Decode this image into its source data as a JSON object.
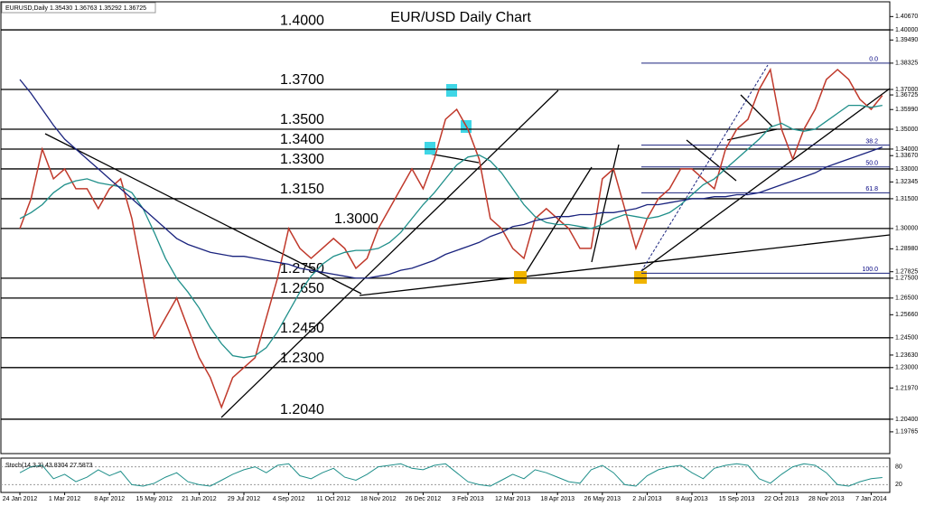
{
  "header": "EURUSD,Daily  1.35430 1.36763 1.35292 1.36725",
  "chart_data": {
    "type": "line",
    "title": "EUR/USD Daily Chart",
    "categories": [
      "24 Jan 2012",
      null,
      null,
      null,
      "1 Mar 2012",
      null,
      null,
      null,
      "8 Apr 2012",
      null,
      null,
      null,
      "15 May 2012",
      null,
      null,
      null,
      "21 Jun 2012",
      null,
      null,
      null,
      "29 Jul 2012",
      null,
      null,
      null,
      "4 Sep 2012",
      null,
      null,
      null,
      "11 Oct 2012",
      null,
      null,
      null,
      "18 Nov 2012",
      null,
      null,
      null,
      "26 Dec 2012",
      null,
      null,
      null,
      "3 Feb 2013",
      null,
      null,
      null,
      "12 Mar 2013",
      null,
      null,
      null,
      "18 Apr 2013",
      null,
      null,
      null,
      "26 May 2013",
      null,
      null,
      null,
      "2 Jul 2013",
      null,
      null,
      null,
      "8 Aug 2013",
      null,
      null,
      null,
      "15 Sep 2013",
      null,
      null,
      null,
      "22 Oct 2013",
      null,
      null,
      null,
      "28 Nov 2013",
      null,
      null,
      null,
      "7 Jan 2014",
      null
    ],
    "series": [
      {
        "color": "#c0392b",
        "values": [
          1.3,
          1.315,
          1.34,
          1.325,
          1.33,
          1.32,
          1.32,
          1.31,
          1.32,
          1.325,
          1.305,
          1.275,
          1.245,
          1.255,
          1.265,
          1.25,
          1.235,
          1.225,
          1.21,
          1.225,
          1.23,
          1.235,
          1.255,
          1.275,
          1.3,
          1.29,
          1.285,
          1.29,
          1.295,
          1.29,
          1.28,
          1.285,
          1.3,
          1.31,
          1.32,
          1.33,
          1.32,
          1.335,
          1.355,
          1.36,
          1.35,
          1.335,
          1.305,
          1.3,
          1.29,
          1.285,
          1.305,
          1.31,
          1.305,
          1.3,
          1.29,
          1.29,
          1.325,
          1.33,
          1.31,
          1.29,
          1.305,
          1.315,
          1.32,
          1.33,
          1.33,
          1.325,
          1.32,
          1.34,
          1.35,
          1.355,
          1.37,
          1.38,
          1.35,
          1.335,
          1.35,
          1.36,
          1.375,
          1.38,
          1.375,
          1.365,
          1.36,
          1.367
        ]
      },
      {
        "color": "#1f8f8a",
        "values": [
          1.305,
          1.308,
          1.312,
          1.318,
          1.322,
          1.324,
          1.325,
          1.323,
          1.322,
          1.321,
          1.318,
          1.31,
          1.298,
          1.285,
          1.275,
          1.268,
          1.26,
          1.25,
          1.242,
          1.236,
          1.235,
          1.236,
          1.24,
          1.248,
          1.258,
          1.268,
          1.276,
          1.282,
          1.286,
          1.288,
          1.289,
          1.289,
          1.29,
          1.293,
          1.298,
          1.305,
          1.312,
          1.318,
          1.325,
          1.332,
          1.336,
          1.337,
          1.334,
          1.328,
          1.32,
          1.312,
          1.306,
          1.303,
          1.302,
          1.302,
          1.301,
          1.3,
          1.302,
          1.305,
          1.307,
          1.306,
          1.305,
          1.306,
          1.308,
          1.312,
          1.317,
          1.322,
          1.325,
          1.33,
          1.335,
          1.34,
          1.345,
          1.351,
          1.353,
          1.35,
          1.349,
          1.35,
          1.354,
          1.358,
          1.362,
          1.362,
          1.361,
          1.362
        ]
      },
      {
        "color": "#1a237e",
        "values": [
          1.375,
          1.368,
          1.36,
          1.352,
          1.345,
          1.34,
          1.335,
          1.33,
          1.325,
          1.32,
          1.315,
          1.31,
          1.305,
          1.3,
          1.295,
          1.292,
          1.29,
          1.288,
          1.287,
          1.286,
          1.286,
          1.285,
          1.284,
          1.283,
          1.282,
          1.28,
          1.279,
          1.278,
          1.277,
          1.276,
          1.275,
          1.275,
          1.276,
          1.277,
          1.279,
          1.28,
          1.282,
          1.284,
          1.287,
          1.289,
          1.291,
          1.293,
          1.296,
          1.298,
          1.301,
          1.302,
          1.304,
          1.305,
          1.306,
          1.306,
          1.307,
          1.307,
          1.308,
          1.308,
          1.309,
          1.31,
          1.312,
          1.312,
          1.313,
          1.314,
          1.315,
          1.315,
          1.316,
          1.316,
          1.317,
          1.317,
          1.318,
          1.32,
          1.322,
          1.324,
          1.326,
          1.328,
          1.331,
          1.333,
          1.335,
          1.337,
          1.339,
          1.341
        ]
      }
    ],
    "ylim": [
      1.1876,
      1.4114
    ],
    "yticks": [
      {
        "value": 1.4067,
        "label": "1.40670"
      },
      {
        "value": 1.4,
        "label": "1.40000"
      },
      {
        "value": 1.3949,
        "label": "1.39490"
      },
      {
        "value": 1.38325,
        "label": "1.38325"
      },
      {
        "value": 1.37,
        "label": "1.37000"
      },
      {
        "value": 1.36725,
        "label": "1.36725"
      },
      {
        "value": 1.3599,
        "label": "1.35990"
      },
      {
        "value": 1.35,
        "label": "1.35000"
      },
      {
        "value": 1.34,
        "label": "1.34000"
      },
      {
        "value": 1.3367,
        "label": "1.33670"
      },
      {
        "value": 1.33,
        "label": "1.33000"
      },
      {
        "value": 1.32345,
        "label": "1.32345"
      },
      {
        "value": 1.315,
        "label": "1.31500"
      },
      {
        "value": 1.3,
        "label": "1.30000"
      },
      {
        "value": 1.2898,
        "label": "1.28980"
      },
      {
        "value": 1.27825,
        "label": "1.27825"
      },
      {
        "value": 1.275,
        "label": "1.27500"
      },
      {
        "value": 1.265,
        "label": "1.26500"
      },
      {
        "value": 1.2566,
        "label": "1.25660"
      },
      {
        "value": 1.245,
        "label": "1.24500"
      },
      {
        "value": 1.2363,
        "label": "1.23630"
      },
      {
        "value": 1.23,
        "label": "1.23000"
      },
      {
        "value": 1.2197,
        "label": "1.21970"
      },
      {
        "value": 1.204,
        "label": "1.20400"
      },
      {
        "value": 1.19765,
        "label": "1.19765"
      }
    ],
    "levels": [
      {
        "value": 1.4,
        "label": "1.4000"
      },
      {
        "value": 1.37,
        "label": "1.3700"
      },
      {
        "value": 1.35,
        "label": "1.3500"
      },
      {
        "value": 1.34,
        "label": "1.3400"
      },
      {
        "value": 1.33,
        "label": "1.3300"
      },
      {
        "value": 1.315,
        "label": "1.3150"
      },
      {
        "value": 1.3,
        "label": "1.3000"
      },
      {
        "value": 1.275,
        "label": "1.2750"
      },
      {
        "value": 1.265,
        "label": "1.2650"
      },
      {
        "value": 1.245,
        "label": "1.2450"
      },
      {
        "value": 1.23,
        "label": "1.2300"
      },
      {
        "value": 1.204,
        "label": "1.2040"
      }
    ],
    "fibonacci": [
      {
        "value": 1.38325,
        "label": "0.0"
      },
      {
        "value": 1.342,
        "label": "38.2"
      },
      {
        "value": 1.331,
        "label": "50.0"
      },
      {
        "value": 1.318,
        "label": "61.8"
      },
      {
        "value": 1.2775,
        "label": "100.0"
      }
    ],
    "indicator": {
      "label": "Stoch(14,3,3) 43.8304 27.5873",
      "color": "#1f8f8a",
      "values": [
        60,
        80,
        85,
        40,
        55,
        30,
        45,
        70,
        50,
        65,
        20,
        15,
        25,
        45,
        60,
        30,
        20,
        15,
        35,
        55,
        70,
        80,
        60,
        85,
        90,
        50,
        40,
        60,
        75,
        45,
        35,
        55,
        80,
        85,
        90,
        75,
        70,
        85,
        90,
        60,
        30,
        20,
        15,
        35,
        55,
        40,
        70,
        60,
        45,
        30,
        25,
        70,
        85,
        60,
        20,
        15,
        50,
        70,
        80,
        85,
        60,
        40,
        75,
        85,
        90,
        85,
        40,
        25,
        55,
        80,
        90,
        85,
        60,
        20,
        15,
        30,
        40,
        44
      ],
      "ylim": [
        0,
        100
      ],
      "yticks": [
        20,
        80
      ]
    }
  }
}
